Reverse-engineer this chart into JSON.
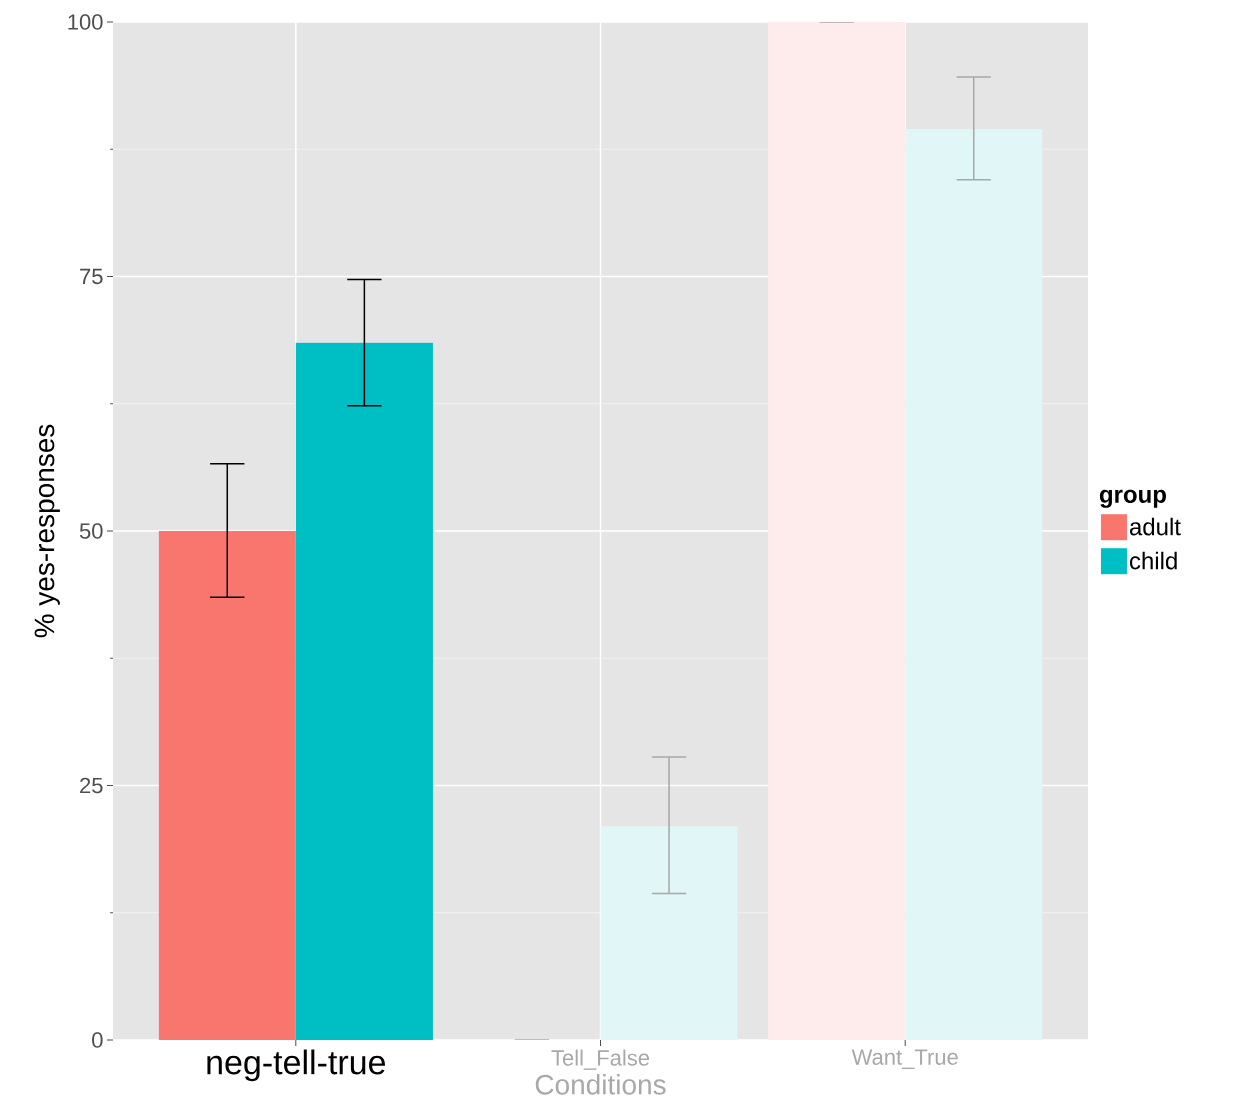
{
  "chart_data": {
    "type": "bar",
    "xlabel": "Conditions",
    "ylabel": "% yes-responses",
    "legend_title": "group",
    "categories": [
      "neg-tell-true",
      "Tell_False",
      "Want_True"
    ],
    "series": [
      {
        "name": "adult",
        "color": "#f8766d",
        "colors": [
          "#f8766d",
          "#fdeceb",
          "#fdeceb"
        ],
        "values": [
          50,
          0,
          100
        ],
        "errors": [
          [
            43.5,
            56.6
          ],
          0,
          0
        ]
      },
      {
        "name": "child",
        "color": "#00bfc4",
        "colors": [
          "#00bfc4",
          "#e0f6f7",
          "#e0f6f7"
        ],
        "values": [
          68.5,
          21,
          89.5
        ],
        "errors": [
          [
            62.3,
            74.7
          ],
          [
            14.4,
            27.8
          ],
          [
            84.5,
            94.6
          ]
        ]
      }
    ],
    "ylim": [
      0,
      100
    ],
    "yticks": [
      0,
      25,
      50,
      75,
      100
    ],
    "grid": true,
    "legend": "right"
  }
}
